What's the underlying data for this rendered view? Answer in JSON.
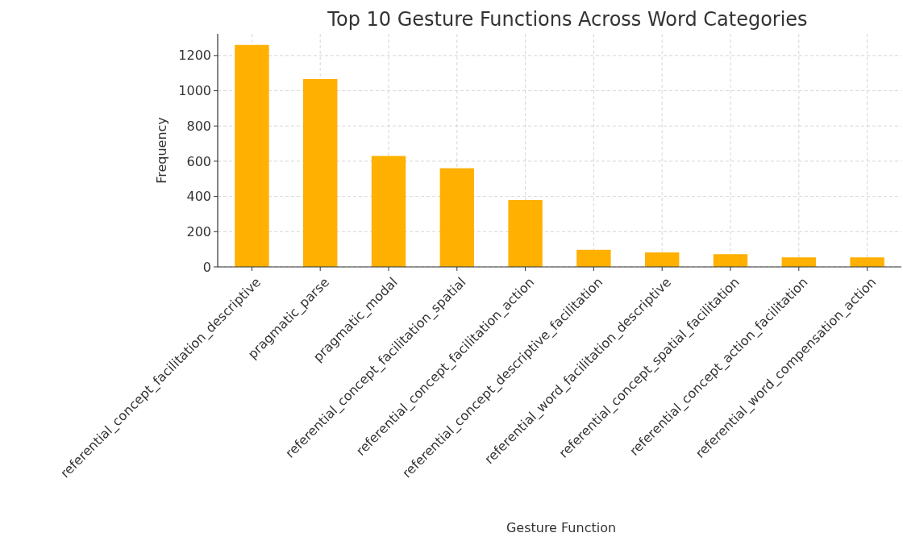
{
  "chart_data": {
    "type": "bar",
    "title": "Top 10 Gesture Functions Across Word Categories",
    "xlabel": "Gesture Function",
    "ylabel": "Frequency",
    "categories": [
      "referential_concept_facilitation_descriptive",
      "pragmatic_parse",
      "pragmatic_modal",
      "referential_concept_facilitation_spatial",
      "referential_concept_facilitation_action",
      "referential_concept_descriptive_facilitation",
      "referential_word_facilitation_descriptive",
      "referential_concept_spatial_facilitation",
      "referential_concept_action_facilitation",
      "referential_word_compensation_action"
    ],
    "values": [
      1260,
      1067,
      630,
      560,
      380,
      97,
      82,
      72,
      54,
      54
    ],
    "color": "#ffb000",
    "ylim": [
      0,
      1323
    ],
    "yticks": [
      0,
      200,
      400,
      600,
      800,
      1000,
      1200
    ],
    "grid": true
  }
}
